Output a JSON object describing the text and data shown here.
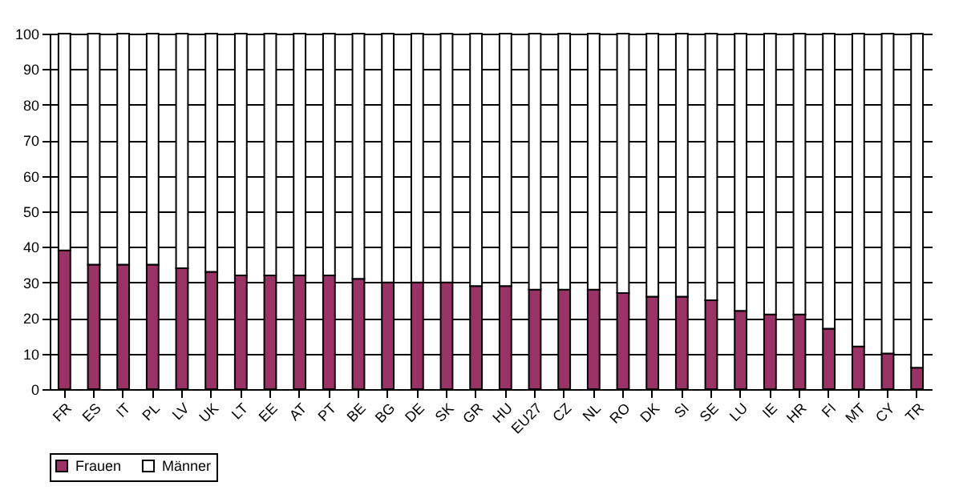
{
  "chart_data": {
    "type": "bar",
    "stacked": true,
    "categories": [
      "FR",
      "ES",
      "IT",
      "PL",
      "LV",
      "UK",
      "LT",
      "EE",
      "AT",
      "PT",
      "BE",
      "BG",
      "DE",
      "SK",
      "GR",
      "HU",
      "EU27",
      "CZ",
      "NL",
      "RO",
      "DK",
      "SI",
      "SE",
      "LU",
      "IE",
      "HR",
      "FI",
      "MT",
      "CY",
      "TR"
    ],
    "series": [
      {
        "name": "Frauen",
        "color": "#993366",
        "values": [
          39,
          35,
          35,
          35,
          34,
          33,
          32,
          32,
          32,
          32,
          31,
          30,
          30,
          30,
          29,
          29,
          28,
          28,
          28,
          27,
          26,
          26,
          25,
          22,
          21,
          21,
          17,
          12,
          10,
          6
        ]
      },
      {
        "name": "Männer",
        "color": "#ffffff",
        "values": [
          61,
          65,
          65,
          65,
          66,
          67,
          68,
          68,
          68,
          68,
          69,
          70,
          70,
          70,
          71,
          71,
          72,
          72,
          72,
          73,
          74,
          74,
          75,
          78,
          79,
          79,
          83,
          88,
          90,
          94
        ]
      }
    ],
    "ylim": [
      0,
      100
    ],
    "yticks": [
      0,
      10,
      20,
      30,
      40,
      50,
      60,
      70,
      80,
      90,
      100
    ],
    "grid": "y",
    "legend": "bottom"
  }
}
